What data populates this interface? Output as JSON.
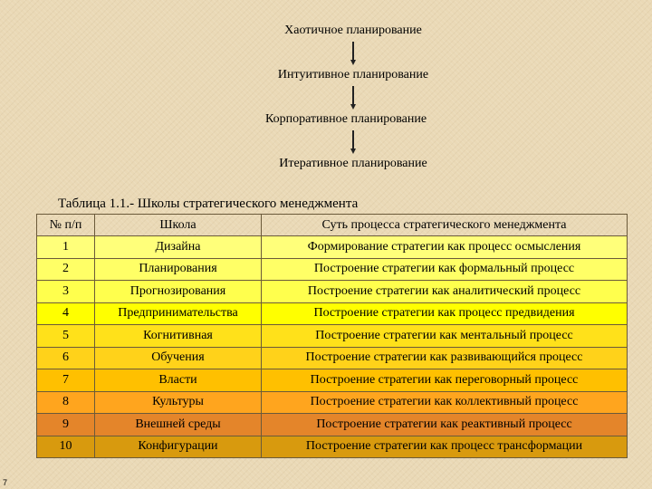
{
  "flow": [
    "Хаотичное планирование",
    "Интуитивное планирование",
    "Корпоративное планирование",
    "Итеративное планирование"
  ],
  "table": {
    "caption": "Таблица 1.1.- Школы стратегического менеджмента",
    "headers": [
      "№ п/п",
      "Школа",
      "Суть процесса стратегического менеджмента"
    ],
    "rows": [
      {
        "num": "1",
        "school": "Дизайна",
        "essence": "Формирование стратегии как процесс осмысления",
        "color": "#ffff7a"
      },
      {
        "num": "2",
        "school": "Планирования",
        "essence": "Построение стратегии как формальный процесс",
        "color": "#ffff66"
      },
      {
        "num": "3",
        "school": "Прогнозирования",
        "essence": "Построение стратегии как аналитический процесс",
        "color": "#ffff4d"
      },
      {
        "num": "4",
        "school": "Предпринимательства",
        "essence": "Построение стратегии как процесс предвидения",
        "color": "#ffff00"
      },
      {
        "num": "5",
        "school": "Когнитивная",
        "essence": "Построение стратегии как ментальный процесс",
        "color": "#ffe11a"
      },
      {
        "num": "6",
        "school": "Обучения",
        "essence": "Построение стратегии как развивающийся процесс",
        "color": "#ffd21a"
      },
      {
        "num": "7",
        "school": "Власти",
        "essence": "Построение стратегии как переговорный процесс",
        "color": "#ffc000"
      },
      {
        "num": "8",
        "school": "Культуры",
        "essence": "Построение стратегии как коллективный процесс",
        "color": "#ffa51e"
      },
      {
        "num": "9",
        "school": "Внешней среды",
        "essence": "Построение стратегии как реактивный процесс",
        "color": "#e4852a"
      },
      {
        "num": "10",
        "school": "Конфигурации",
        "essence": "Построение стратегии как процесс трансформации",
        "color": "#d89a0e"
      }
    ]
  },
  "page_number": "7"
}
